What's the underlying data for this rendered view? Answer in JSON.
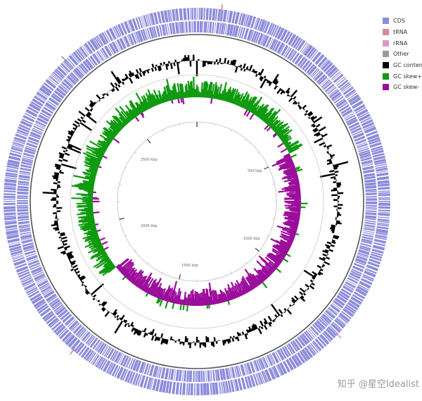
{
  "legend": {
    "items": [
      {
        "label": "CDS",
        "color": "#8c8cdb"
      },
      {
        "label": "tRNA",
        "color": "#d58a94"
      },
      {
        "label": "rRNA",
        "color": "#d89ad3"
      },
      {
        "label": "Other",
        "color": "#9a9a9a"
      },
      {
        "label": "GC content",
        "color": "#000000"
      },
      {
        "label": "GC skew+",
        "color": "#0f9a0f"
      },
      {
        "label": "GC skew-",
        "color": "#9b0d9b"
      }
    ]
  },
  "diagram": {
    "type": "circular genome map",
    "scale_labels": [
      "500 kbp",
      "1000 kbp",
      "1500 kbp",
      "2000 kbp",
      "2500 kbp"
    ],
    "genome_length_kbp": 2770,
    "gc_skew_positive_arc_kbp": [
      0,
      420
    ],
    "gc_skew_negative_arc_kbp": [
      480,
      1780
    ],
    "gc_skew_positive_arc2_kbp": [
      1800,
      2770
    ]
  },
  "watermark": "知乎 @星空Idealist"
}
